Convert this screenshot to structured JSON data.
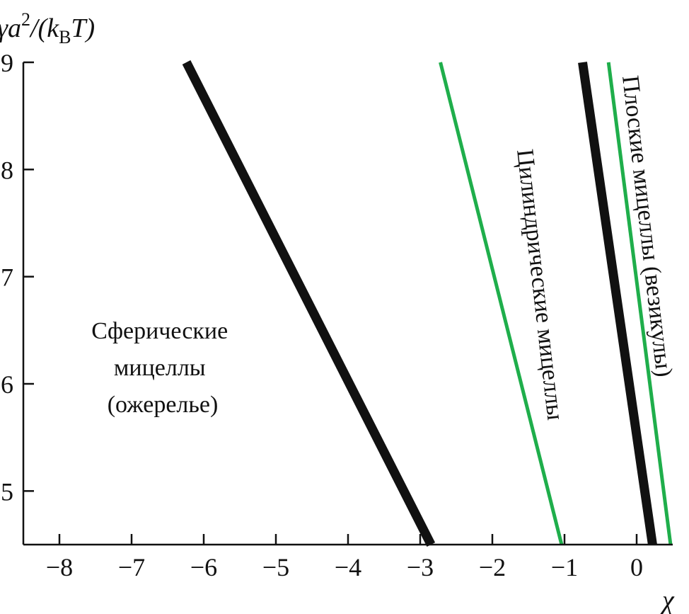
{
  "chart_data": {
    "type": "line",
    "ylabel_parts": {
      "base": "γa",
      "sup": "2",
      "mid": "/(k",
      "sub": "B",
      "end": "T)"
    },
    "xlabel": "χ",
    "xlim": [
      -8.5,
      0.5
    ],
    "ylim": [
      4.5,
      9
    ],
    "xticks": [
      -8,
      -7,
      -6,
      -5,
      -4,
      -3,
      -2,
      -1,
      0
    ],
    "xtick_labels": [
      "−8",
      "−7",
      "−6",
      "−5",
      "−4",
      "−3",
      "−2",
      "−1",
      "0"
    ],
    "yticks": [
      5,
      6,
      7,
      8,
      9
    ],
    "ytick_labels": [
      "5",
      "6",
      "7",
      "8",
      "9"
    ],
    "series": [
      {
        "color": "#111111",
        "width": 13,
        "points": [
          [
            -6.24,
            9.0
          ],
          [
            -2.85,
            4.5
          ]
        ]
      },
      {
        "color": "#1fae4b",
        "width": 5,
        "points": [
          [
            -2.72,
            9.0
          ],
          [
            -1.04,
            4.5
          ]
        ]
      },
      {
        "color": "#111111",
        "width": 13,
        "points": [
          [
            -0.75,
            9.0
          ],
          [
            0.22,
            4.5
          ]
        ]
      },
      {
        "color": "#1fae4b",
        "width": 5,
        "points": [
          [
            -0.39,
            9.0
          ],
          [
            0.47,
            4.5
          ]
        ]
      }
    ],
    "region_labels": {
      "spherical": [
        "Сферические",
        "мицеллы",
        "(ожерелье)"
      ],
      "cylindrical": "Цилиндрические мицеллы",
      "planar": "Плоские мицеллы (везикулы)"
    }
  }
}
